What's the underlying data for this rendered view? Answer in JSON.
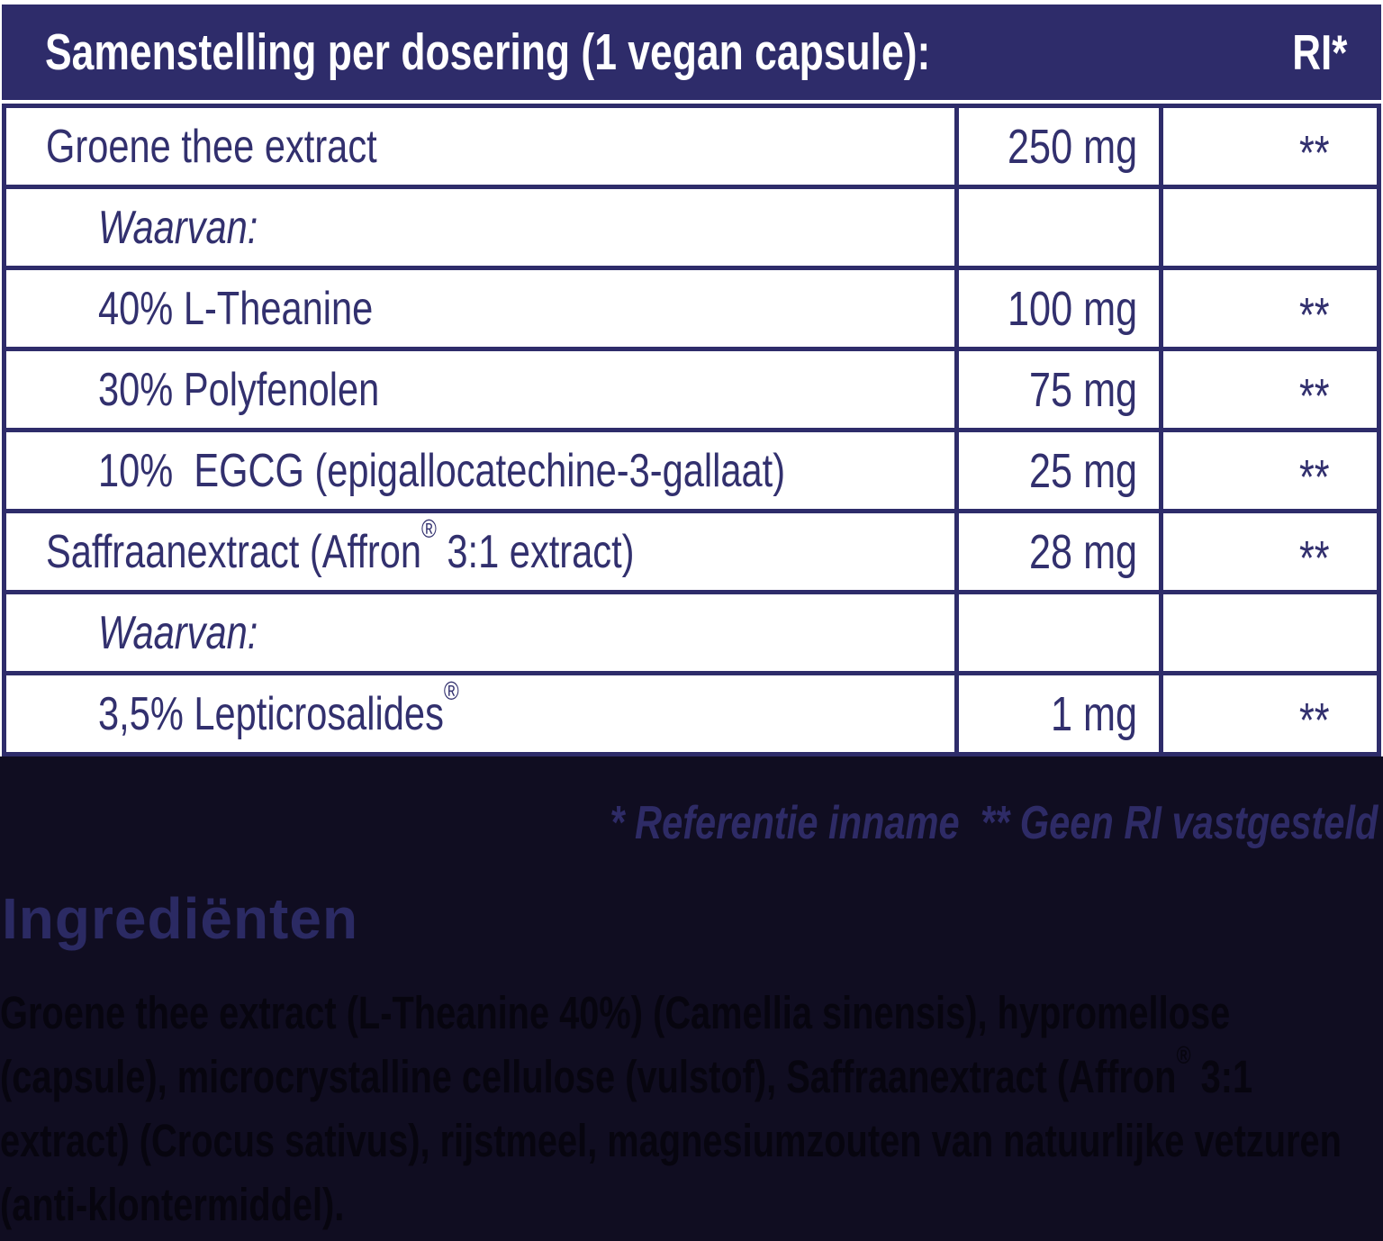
{
  "colors": {
    "navy": "#2e2c6a",
    "table_text_navy": "#32306e",
    "dark_background": "#100d21",
    "footnote_navy": "#2e2b66",
    "paragraph_ink": "#07050f",
    "white": "#ffffff"
  },
  "table": {
    "header": {
      "title": "Samenstelling per dosering (1 vegan capsule):",
      "ri_label": "RI*"
    },
    "rows": [
      {
        "name": "Groene thee extract",
        "amount": "250 mg",
        "ri": "**"
      },
      {
        "name": "Waarvan:",
        "amount": "",
        "ri": ""
      },
      {
        "name": "40% L-Theanine",
        "amount": "100 mg",
        "ri": "**"
      },
      {
        "name": "30% Polyfenolen",
        "amount": "75 mg",
        "ri": "**"
      },
      {
        "name": "10%  EGCG (epigallocatechine-3-gallaat)",
        "amount": "25 mg",
        "ri": "**"
      },
      {
        "name": "Saffraanextract (Affron® 3:1 extract)",
        "amount": "28 mg",
        "ri": "**"
      },
      {
        "name": "Waarvan:",
        "amount": "",
        "ri": ""
      },
      {
        "name": "3,5% Lepticrosalides®",
        "amount": "1 mg",
        "ri": "**"
      }
    ]
  },
  "footnotes": "* Referentie inname  ** Geen RI vastgesteld",
  "ingredients": {
    "heading": "Ingrediënten",
    "text": "Groene thee extract (L-Theanine 40%) (Camellia sinensis), hypromellose (capsule), microcrystalline cellulose (vulstof), Saffraanextract (Affron® 3:1 extract) (Crocus sativus), rijstmeel, magnesiumzouten van natuurlijke vetzuren (anti-klontermiddel)."
  }
}
